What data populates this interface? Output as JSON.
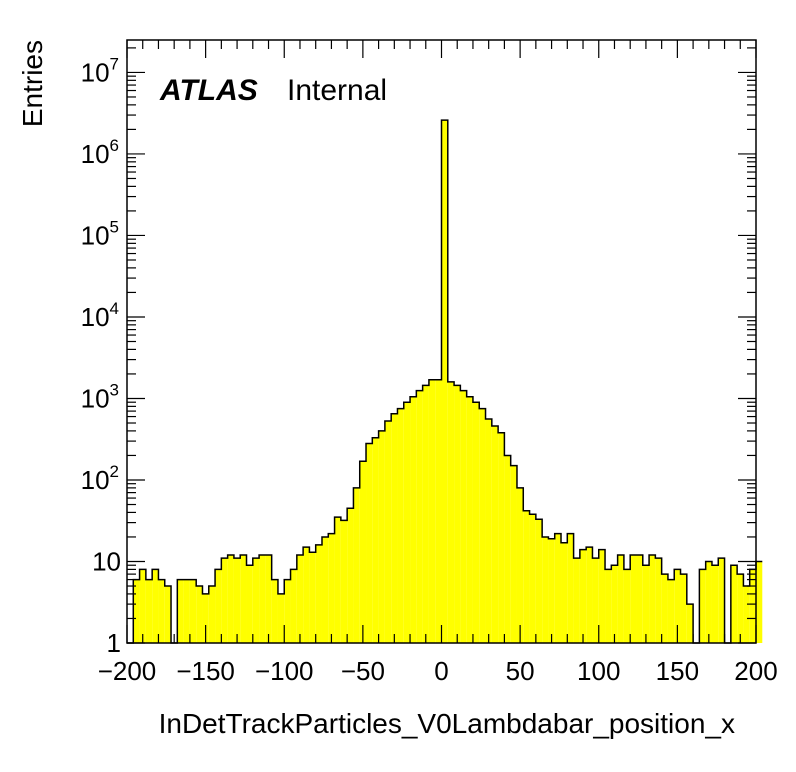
{
  "chart_data": {
    "type": "bar",
    "subtype": "histogram",
    "xlabel": "InDetTrackParticles_V0Lambdabar_position_x",
    "ylabel": "Entries",
    "label_bold": "ATLAS",
    "label_status": "Internal",
    "xlim": [
      -200,
      200
    ],
    "ylim": [
      1,
      25000000
    ],
    "yscale": "log",
    "xticks": [
      -200,
      -150,
      -100,
      -50,
      0,
      50,
      100,
      150,
      200
    ],
    "xtick_labels": [
      "−200",
      "−150",
      "−100",
      "−50",
      "0",
      "50",
      "100",
      "150",
      "200"
    ],
    "yticks": [
      {
        "value": 1,
        "base": "1",
        "exp": ""
      },
      {
        "value": 10,
        "base": "10",
        "exp": ""
      },
      {
        "value": 100,
        "base": "10",
        "exp": "2"
      },
      {
        "value": 1000,
        "base": "10",
        "exp": "3"
      },
      {
        "value": 10000,
        "base": "10",
        "exp": "4"
      },
      {
        "value": 100000,
        "base": "10",
        "exp": "5"
      },
      {
        "value": 1000000,
        "base": "10",
        "exp": "6"
      },
      {
        "value": 10000000,
        "base": "10",
        "exp": "7"
      }
    ],
    "bin_edges_start": -200,
    "bin_width": 4,
    "fill_color": "#ffff00",
    "line_color": "#000000",
    "values": [
      1,
      6,
      8,
      6,
      8,
      6,
      5,
      1,
      6,
      6,
      6,
      5,
      4,
      5,
      8,
      11,
      12,
      11,
      12,
      9,
      11,
      12,
      12,
      6,
      4,
      6,
      8,
      12,
      15,
      13,
      16,
      20,
      22,
      35,
      32,
      45,
      80,
      170,
      280,
      330,
      400,
      530,
      650,
      750,
      900,
      1050,
      1250,
      1450,
      1700,
      1700,
      2600000,
      1600,
      1450,
      1250,
      1050,
      900,
      750,
      560,
      460,
      380,
      200,
      150,
      80,
      42,
      38,
      33,
      20,
      19,
      22,
      17,
      22,
      11,
      14,
      15,
      11,
      14,
      8,
      9,
      12,
      8,
      12,
      12,
      9,
      12,
      11,
      7,
      6,
      8,
      7,
      3,
      1,
      8,
      10,
      9,
      11,
      1,
      9,
      7,
      5,
      8,
      10
    ]
  }
}
